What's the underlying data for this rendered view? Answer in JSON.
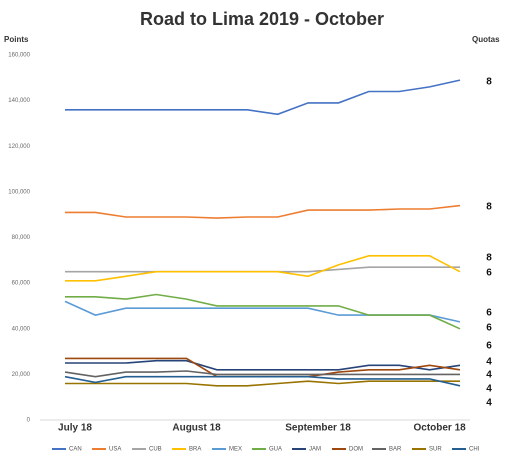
{
  "chart_data": {
    "type": "line",
    "title": "Road to Lima 2019 - October",
    "y_axis_label": "Points",
    "quota_label": "Quotas",
    "categories": [
      "July 18",
      null,
      null,
      null,
      "August 18",
      null,
      null,
      null,
      "September 18",
      null,
      null,
      null,
      "October 18",
      null
    ],
    "ylim": [
      0,
      160000
    ],
    "yticks": [
      0,
      {
        "value": 20000,
        "label": "20,000"
      },
      {
        "value": 40000,
        "label": "40,000"
      },
      {
        "value": 60000,
        "label": "60,000"
      },
      {
        "value": 80000,
        "label": "80,000"
      },
      {
        "value": 100000,
        "label": "100,000"
      },
      {
        "value": 120000,
        "label": "120,000"
      },
      {
        "value": 140000,
        "label": "140,000"
      },
      {
        "value": 160000,
        "label": "160,000"
      }
    ],
    "grid": false,
    "series": [
      {
        "name": "CAN",
        "color": "#4472c4",
        "quota": 8,
        "values": [
          136000,
          136000,
          136000,
          136000,
          136000,
          136000,
          136000,
          134000,
          139000,
          139000,
          144000,
          144000,
          146000,
          149000
        ]
      },
      {
        "name": "USA",
        "color": "#ed7d31",
        "quota": 8,
        "values": [
          91000,
          91000,
          89000,
          89000,
          89000,
          88500,
          89000,
          89000,
          92000,
          92000,
          92000,
          92500,
          92500,
          94000
        ]
      },
      {
        "name": "CUB",
        "color": "#a5a5a5",
        "quota": 8,
        "values": [
          65000,
          65000,
          65000,
          65000,
          65000,
          65000,
          65000,
          65000,
          65000,
          66000,
          67000,
          67000,
          67000,
          67000
        ]
      },
      {
        "name": "BRA",
        "color": "#ffc000",
        "quota": 6,
        "values": [
          61000,
          61000,
          63000,
          65000,
          65000,
          65000,
          65000,
          65000,
          63000,
          68000,
          72000,
          72000,
          72000,
          65000
        ]
      },
      {
        "name": "MEX",
        "color": "#5b9bd5",
        "quota": 6,
        "values": [
          52000,
          46000,
          49000,
          49000,
          49000,
          49000,
          49000,
          49000,
          49000,
          46000,
          46000,
          46000,
          46000,
          43000
        ]
      },
      {
        "name": "GUA",
        "color": "#70ad47",
        "quota": 6,
        "values": [
          54000,
          54000,
          53000,
          55000,
          53000,
          50000,
          50000,
          50000,
          50000,
          50000,
          46000,
          46000,
          46000,
          40000
        ]
      },
      {
        "name": "JAM",
        "color": "#264478",
        "quota": 6,
        "values": [
          25000,
          25000,
          25000,
          26000,
          26000,
          22000,
          22000,
          22000,
          22000,
          22000,
          24000,
          24000,
          22000,
          24000
        ]
      },
      {
        "name": "DOM",
        "color": "#9e480e",
        "quota": 4,
        "values": [
          27000,
          27000,
          27000,
          27000,
          27000,
          19000,
          19000,
          19000,
          19000,
          21000,
          22000,
          22000,
          24000,
          22000
        ]
      },
      {
        "name": "BAR",
        "color": "#636363",
        "quota": 4,
        "values": [
          21000,
          19000,
          21000,
          21000,
          21500,
          20000,
          20000,
          20000,
          20000,
          20000,
          20000,
          20000,
          20000,
          20000
        ]
      },
      {
        "name": "SUR",
        "color": "#997300",
        "quota": 4,
        "values": [
          16000,
          16000,
          16000,
          16000,
          16000,
          15000,
          15000,
          16000,
          17000,
          16000,
          17000,
          17000,
          17000,
          17000
        ]
      },
      {
        "name": "CHI",
        "color": "#255e91",
        "quota": 4,
        "values": [
          19000,
          16500,
          19000,
          19000,
          19000,
          19000,
          19000,
          19000,
          19000,
          18000,
          18000,
          18000,
          18000,
          15000
        ]
      }
    ]
  }
}
